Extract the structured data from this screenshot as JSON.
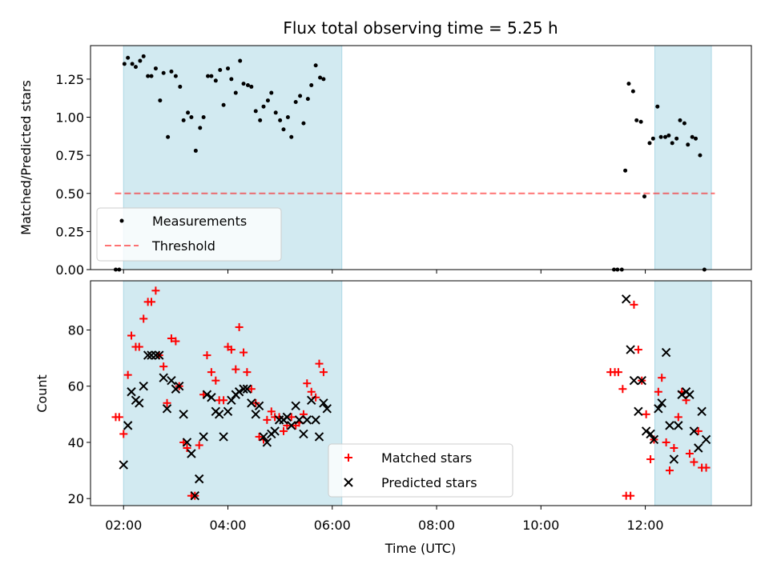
{
  "chart_data": [
    {
      "type": "scatter",
      "title": "Flux total observing time = 5.25 h",
      "xlabel": "",
      "ylabel": "Matched/Predicted stars",
      "xlim": [
        "01:22",
        "14:02"
      ],
      "ylim": [
        0,
        1.47
      ],
      "yticks": [
        "0.00",
        "0.25",
        "0.50",
        "0.75",
        "1.00",
        "1.25"
      ],
      "shaded_intervals": [
        [
          "02:00",
          "06:11"
        ],
        [
          "12:11",
          "13:16"
        ]
      ],
      "shade_color": "#add8e6",
      "legend": {
        "position": "lower-left",
        "entries": [
          {
            "label": "Measurements",
            "marker": "dot",
            "color": "#000000"
          },
          {
            "label": "Threshold",
            "marker": "dashed-line",
            "color": "#ff0000"
          }
        ]
      },
      "threshold": {
        "value": 0.5,
        "x_start": "01:50",
        "x_end": "13:20",
        "color": "#ff0000"
      },
      "series": [
        {
          "name": "Measurements",
          "color": "#000000",
          "points": [
            [
              "01:51",
              0.0
            ],
            [
              "01:55",
              0.0
            ],
            [
              "02:01",
              1.35
            ],
            [
              "02:05",
              1.39
            ],
            [
              "02:10",
              1.35
            ],
            [
              "02:14",
              1.33
            ],
            [
              "02:19",
              1.37
            ],
            [
              "02:23",
              1.4
            ],
            [
              "02:28",
              1.27
            ],
            [
              "02:32",
              1.27
            ],
            [
              "02:37",
              1.32
            ],
            [
              "02:42",
              1.11
            ],
            [
              "02:46",
              1.29
            ],
            [
              "02:51",
              0.87
            ],
            [
              "02:55",
              1.3
            ],
            [
              "03:00",
              1.27
            ],
            [
              "03:05",
              1.2
            ],
            [
              "03:09",
              0.98
            ],
            [
              "03:14",
              1.03
            ],
            [
              "03:18",
              1.0
            ],
            [
              "03:23",
              0.78
            ],
            [
              "03:28",
              0.93
            ],
            [
              "03:32",
              1.0
            ],
            [
              "03:37",
              1.27
            ],
            [
              "03:41",
              1.27
            ],
            [
              "03:46",
              1.24
            ],
            [
              "03:51",
              1.31
            ],
            [
              "03:55",
              1.08
            ],
            [
              "04:00",
              1.32
            ],
            [
              "04:04",
              1.25
            ],
            [
              "04:09",
              1.16
            ],
            [
              "04:14",
              1.37
            ],
            [
              "04:18",
              1.22
            ],
            [
              "04:23",
              1.21
            ],
            [
              "04:27",
              1.2
            ],
            [
              "04:32",
              1.04
            ],
            [
              "04:37",
              0.98
            ],
            [
              "04:41",
              1.07
            ],
            [
              "04:46",
              1.11
            ],
            [
              "04:50",
              1.16
            ],
            [
              "04:55",
              1.03
            ],
            [
              "05:00",
              0.98
            ],
            [
              "05:04",
              0.92
            ],
            [
              "05:09",
              1.0
            ],
            [
              "05:13",
              0.87
            ],
            [
              "05:18",
              1.1
            ],
            [
              "05:23",
              1.14
            ],
            [
              "05:27",
              0.96
            ],
            [
              "05:32",
              1.12
            ],
            [
              "05:36",
              1.21
            ],
            [
              "05:41",
              1.34
            ],
            [
              "05:46",
              1.26
            ],
            [
              "05:50",
              1.25
            ],
            [
              "11:24",
              0.0
            ],
            [
              "11:28",
              0.0
            ],
            [
              "11:33",
              0.0
            ],
            [
              "11:37",
              0.65
            ],
            [
              "11:41",
              1.22
            ],
            [
              "11:46",
              1.17
            ],
            [
              "11:50",
              0.98
            ],
            [
              "11:55",
              0.97
            ],
            [
              "11:59",
              0.48
            ],
            [
              "12:05",
              0.83
            ],
            [
              "12:09",
              0.86
            ],
            [
              "12:14",
              1.07
            ],
            [
              "12:18",
              0.87
            ],
            [
              "12:23",
              0.87
            ],
            [
              "12:27",
              0.88
            ],
            [
              "12:31",
              0.83
            ],
            [
              "12:36",
              0.86
            ],
            [
              "12:40",
              0.98
            ],
            [
              "12:45",
              0.96
            ],
            [
              "12:49",
              0.82
            ],
            [
              "12:54",
              0.87
            ],
            [
              "12:58",
              0.86
            ],
            [
              "13:03",
              0.75
            ],
            [
              "13:08",
              0.0
            ]
          ]
        }
      ]
    },
    {
      "type": "scatter",
      "xlabel": "Time (UTC)",
      "ylabel": "Count",
      "xlim": [
        "01:22",
        "14:02"
      ],
      "ylim": [
        17.5,
        97.5
      ],
      "xticks": [
        "02:00",
        "04:00",
        "06:00",
        "08:00",
        "10:00",
        "12:00"
      ],
      "yticks": [
        "20",
        "40",
        "60",
        "80"
      ],
      "shaded_intervals": [
        [
          "02:00",
          "06:11"
        ],
        [
          "12:11",
          "13:16"
        ]
      ],
      "shade_color": "#add8e6",
      "legend": {
        "position": "lower-center",
        "entries": [
          {
            "label": "Matched stars",
            "marker": "plus",
            "color": "#ff0000"
          },
          {
            "label": "Predicted stars",
            "marker": "x",
            "color": "#000000"
          }
        ]
      },
      "series": [
        {
          "name": "Matched stars",
          "color": "#ff0000",
          "marker": "plus",
          "points": [
            [
              "01:51",
              49
            ],
            [
              "01:55",
              49
            ],
            [
              "02:00",
              43
            ],
            [
              "02:05",
              64
            ],
            [
              "02:09",
              78
            ],
            [
              "02:14",
              74
            ],
            [
              "02:18",
              74
            ],
            [
              "02:23",
              84
            ],
            [
              "02:28",
              90
            ],
            [
              "02:32",
              90
            ],
            [
              "02:37",
              94
            ],
            [
              "02:41",
              71
            ],
            [
              "02:46",
              67
            ],
            [
              "02:50",
              54
            ],
            [
              "02:55",
              77
            ],
            [
              "03:00",
              76
            ],
            [
              "03:04",
              60
            ],
            [
              "03:09",
              40
            ],
            [
              "03:13",
              38
            ],
            [
              "03:18",
              21
            ],
            [
              "03:22",
              21
            ],
            [
              "03:27",
              39
            ],
            [
              "03:32",
              57
            ],
            [
              "03:36",
              71
            ],
            [
              "03:41",
              65
            ],
            [
              "03:46",
              62
            ],
            [
              "03:50",
              55
            ],
            [
              "03:55",
              55
            ],
            [
              "04:00",
              74
            ],
            [
              "04:04",
              73
            ],
            [
              "04:09",
              66
            ],
            [
              "04:13",
              81
            ],
            [
              "04:18",
              72
            ],
            [
              "04:22",
              65
            ],
            [
              "04:27",
              59
            ],
            [
              "04:32",
              54
            ],
            [
              "04:36",
              42
            ],
            [
              "04:41",
              41
            ],
            [
              "04:45",
              48
            ],
            [
              "04:50",
              51
            ],
            [
              "04:54",
              49
            ],
            [
              "04:59",
              49
            ],
            [
              "05:04",
              44
            ],
            [
              "05:08",
              46
            ],
            [
              "05:13",
              49
            ],
            [
              "05:18",
              46
            ],
            [
              "05:22",
              47
            ],
            [
              "05:27",
              50
            ],
            [
              "05:31",
              61
            ],
            [
              "05:36",
              58
            ],
            [
              "05:41",
              56
            ],
            [
              "05:45",
              68
            ],
            [
              "05:50",
              65
            ],
            [
              "11:20",
              65
            ],
            [
              "11:25",
              65
            ],
            [
              "11:29",
              65
            ],
            [
              "11:34",
              59
            ],
            [
              "11:38",
              21
            ],
            [
              "11:43",
              21
            ],
            [
              "11:47",
              89
            ],
            [
              "11:52",
              73
            ],
            [
              "11:56",
              62
            ],
            [
              "12:01",
              50
            ],
            [
              "12:06",
              34
            ],
            [
              "12:10",
              41
            ],
            [
              "12:15",
              58
            ],
            [
              "12:19",
              63
            ],
            [
              "12:24",
              40
            ],
            [
              "12:28",
              30
            ],
            [
              "12:33",
              38
            ],
            [
              "12:38",
              49
            ],
            [
              "12:42",
              58
            ],
            [
              "12:47",
              55
            ],
            [
              "12:51",
              36
            ],
            [
              "12:56",
              33
            ],
            [
              "13:01",
              44
            ],
            [
              "13:05",
              31
            ],
            [
              "13:10",
              31
            ]
          ]
        },
        {
          "name": "Predicted stars",
          "color": "#000000",
          "marker": "x",
          "points": [
            [
              "02:00",
              32
            ],
            [
              "02:05",
              46
            ],
            [
              "02:09",
              58
            ],
            [
              "02:14",
              55
            ],
            [
              "02:18",
              54
            ],
            [
              "02:23",
              60
            ],
            [
              "02:28",
              71
            ],
            [
              "02:32",
              71
            ],
            [
              "02:37",
              71
            ],
            [
              "02:41",
              71
            ],
            [
              "02:46",
              63
            ],
            [
              "02:50",
              52
            ],
            [
              "02:55",
              62
            ],
            [
              "03:00",
              59
            ],
            [
              "03:04",
              60
            ],
            [
              "03:09",
              50
            ],
            [
              "03:13",
              40
            ],
            [
              "03:18",
              36
            ],
            [
              "03:22",
              21
            ],
            [
              "03:27",
              27
            ],
            [
              "03:32",
              42
            ],
            [
              "03:36",
              57
            ],
            [
              "03:41",
              56
            ],
            [
              "03:46",
              51
            ],
            [
              "03:50",
              50
            ],
            [
              "03:55",
              42
            ],
            [
              "04:00",
              51
            ],
            [
              "04:04",
              55
            ],
            [
              "04:09",
              57
            ],
            [
              "04:13",
              58
            ],
            [
              "04:18",
              59
            ],
            [
              "04:22",
              59
            ],
            [
              "04:27",
              54
            ],
            [
              "04:32",
              50
            ],
            [
              "04:36",
              53
            ],
            [
              "04:41",
              42
            ],
            [
              "04:45",
              40
            ],
            [
              "04:50",
              43
            ],
            [
              "04:54",
              44
            ],
            [
              "04:59",
              48
            ],
            [
              "05:04",
              48
            ],
            [
              "05:08",
              49
            ],
            [
              "05:13",
              46
            ],
            [
              "05:18",
              53
            ],
            [
              "05:22",
              48
            ],
            [
              "05:27",
              43
            ],
            [
              "05:31",
              48
            ],
            [
              "05:36",
              55
            ],
            [
              "05:41",
              48
            ],
            [
              "05:45",
              42
            ],
            [
              "05:50",
              54
            ],
            [
              "05:54",
              52
            ],
            [
              "11:38",
              91
            ],
            [
              "11:43",
              73
            ],
            [
              "11:47",
              62
            ],
            [
              "11:52",
              51
            ],
            [
              "11:56",
              62
            ],
            [
              "12:01",
              44
            ],
            [
              "12:06",
              43
            ],
            [
              "12:10",
              41
            ],
            [
              "12:15",
              52
            ],
            [
              "12:19",
              54
            ],
            [
              "12:24",
              72
            ],
            [
              "12:28",
              46
            ],
            [
              "12:33",
              34
            ],
            [
              "12:38",
              46
            ],
            [
              "12:42",
              57
            ],
            [
              "12:47",
              58
            ],
            [
              "12:51",
              57
            ],
            [
              "12:56",
              44
            ],
            [
              "13:01",
              38
            ],
            [
              "13:05",
              51
            ],
            [
              "13:10",
              41
            ]
          ]
        }
      ]
    }
  ]
}
